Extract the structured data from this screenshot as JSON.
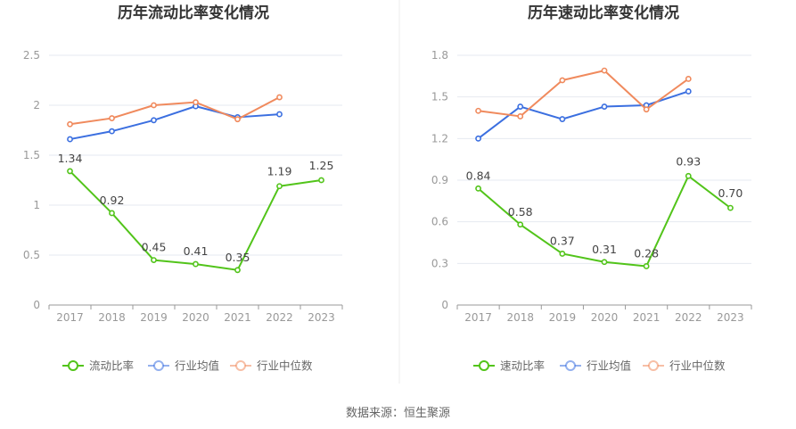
{
  "source_text": "数据来源：恒生聚源",
  "chart_data": [
    {
      "type": "line",
      "title": "历年流动比率变化情况",
      "categories": [
        "2017",
        "2018",
        "2019",
        "2020",
        "2021",
        "2022",
        "2023"
      ],
      "ylim": [
        0,
        2.5
      ],
      "yticks": [
        "0",
        "0.5",
        "1",
        "1.5",
        "2",
        "2.5"
      ],
      "grid": true,
      "legend_position": "bottom",
      "series": [
        {
          "name": "流动比率",
          "color": "#52c41a",
          "values": [
            1.34,
            0.92,
            0.45,
            0.41,
            0.35,
            1.19,
            1.25
          ],
          "labels": [
            "1.34",
            "0.92",
            "0.45",
            "0.41",
            "0.35",
            "1.19",
            "1.25"
          ]
        },
        {
          "name": "行业均值",
          "color": "#3b6fe0",
          "values": [
            1.66,
            1.74,
            1.85,
            1.99,
            1.88,
            1.91,
            null
          ]
        },
        {
          "name": "行业中位数",
          "color": "#f08a5d",
          "values": [
            1.81,
            1.87,
            2.0,
            2.03,
            1.86,
            2.08,
            null
          ]
        }
      ]
    },
    {
      "type": "line",
      "title": "历年速动比率变化情况",
      "categories": [
        "2017",
        "2018",
        "2019",
        "2020",
        "2021",
        "2022",
        "2023"
      ],
      "ylim": [
        0,
        1.8
      ],
      "yticks": [
        "0",
        "0.3",
        "0.6",
        "0.9",
        "1.2",
        "1.5",
        "1.8"
      ],
      "grid": true,
      "legend_position": "bottom",
      "series": [
        {
          "name": "速动比率",
          "color": "#52c41a",
          "values": [
            0.84,
            0.58,
            0.37,
            0.31,
            0.28,
            0.93,
            0.7
          ],
          "labels": [
            "0.84",
            "0.58",
            "0.37",
            "0.31",
            "0.28",
            "0.93",
            "0.70"
          ]
        },
        {
          "name": "行业均值",
          "color": "#3b6fe0",
          "values": [
            1.2,
            1.43,
            1.34,
            1.43,
            1.44,
            1.54,
            null
          ]
        },
        {
          "name": "行业中位数",
          "color": "#f08a5d",
          "values": [
            1.4,
            1.36,
            1.62,
            1.69,
            1.41,
            1.63,
            null
          ]
        }
      ]
    }
  ]
}
